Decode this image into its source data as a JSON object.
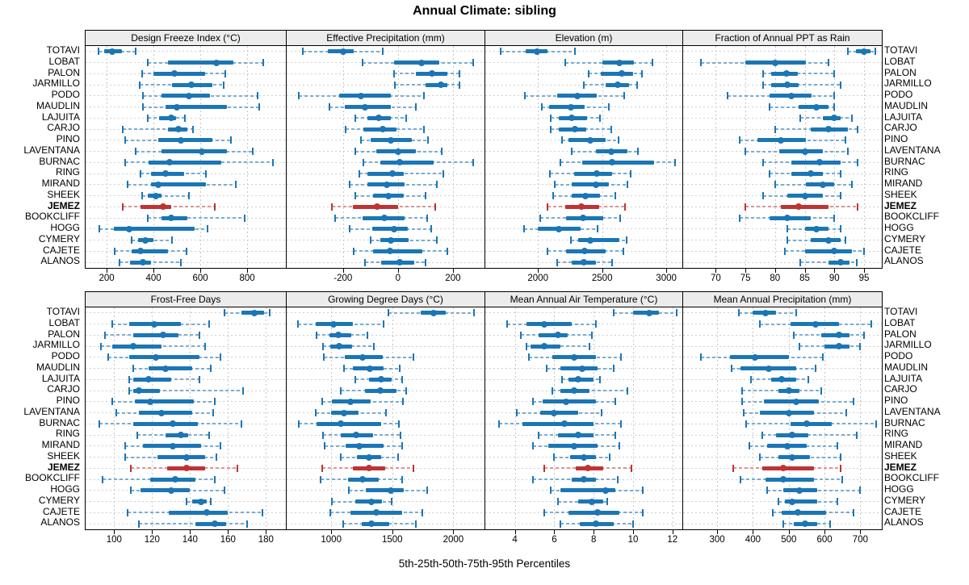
{
  "title": "Annual Climate: sibling",
  "caption": "5th-25th-50th-75th-95th Percentiles",
  "percentiles": [
    5,
    25,
    50,
    75,
    95
  ],
  "sites": [
    "TOTAVI",
    "LOBAT",
    "PALON",
    "JARMILLO",
    "PODO",
    "MAUDLIN",
    "LAJUITA",
    "CARJO",
    "PINO",
    "LAVENTANA",
    "BURNAC",
    "RING",
    "MIRAND",
    "SHEEK",
    "JEMEZ",
    "BOOKCLIFF",
    "HOGG",
    "CYMERY",
    "CAJETE",
    "ALANOS"
  ],
  "highlight_site": "JEMEZ",
  "colors": {
    "blue": "#1B76B5",
    "blue_light": "#7AADD3",
    "red": "#BE3434",
    "red_light": "#DC9595",
    "strip_bg": "#ECECEC",
    "border": "#000000",
    "grid": "#C8C8C8"
  },
  "chart_data": [
    {
      "type": "dotplot",
      "title": "Design Freeze Index (°C)",
      "xlim": [
        110,
        965
      ],
      "ticks": [
        200,
        400,
        600,
        800
      ],
      "values": [
        [
          165,
          190,
          225,
          265,
          325
        ],
        [
          375,
          460,
          670,
          740,
          870
        ],
        [
          350,
          400,
          490,
          620,
          705
        ],
        [
          340,
          480,
          560,
          650,
          700
        ],
        [
          355,
          435,
          550,
          640,
          845
        ],
        [
          355,
          450,
          500,
          715,
          850
        ],
        [
          375,
          425,
          475,
          495,
          535
        ],
        [
          270,
          460,
          505,
          545,
          570
        ],
        [
          280,
          420,
          515,
          650,
          730
        ],
        [
          325,
          435,
          605,
          715,
          825
        ],
        [
          280,
          380,
          470,
          690,
          910
        ],
        [
          345,
          390,
          450,
          530,
          625
        ],
        [
          290,
          390,
          420,
          625,
          750
        ],
        [
          350,
          375,
          410,
          435,
          550
        ],
        [
          270,
          345,
          440,
          475,
          660
        ],
        [
          375,
          435,
          475,
          545,
          790
        ],
        [
          170,
          230,
          295,
          575,
          630
        ],
        [
          305,
          335,
          365,
          400,
          480
        ],
        [
          235,
          305,
          345,
          460,
          540
        ],
        [
          255,
          300,
          355,
          390,
          515
        ]
      ]
    },
    {
      "type": "dotplot",
      "title": "Effective Precipitation (mm)",
      "xlim": [
        -405,
        315
      ],
      "ticks": [
        -200,
        0,
        200
      ],
      "values": [
        [
          -345,
          -255,
          -200,
          -160,
          -55
        ],
        [
          -130,
          -15,
          85,
          150,
          275
        ],
        [
          -15,
          65,
          125,
          180,
          225
        ],
        [
          -10,
          100,
          155,
          180,
          225
        ],
        [
          -360,
          -215,
          -135,
          -25,
          95
        ],
        [
          -250,
          -195,
          -120,
          -25,
          65
        ],
        [
          -155,
          -110,
          -70,
          -25,
          30
        ],
        [
          -190,
          -125,
          -55,
          -5,
          95
        ],
        [
          -135,
          -100,
          -25,
          50,
          110
        ],
        [
          -155,
          -80,
          0,
          65,
          160
        ],
        [
          -125,
          -65,
          5,
          130,
          275
        ],
        [
          -140,
          -110,
          -20,
          20,
          165
        ],
        [
          -175,
          -110,
          -40,
          25,
          140
        ],
        [
          -155,
          -90,
          -35,
          20,
          100
        ],
        [
          -240,
          -165,
          -75,
          0,
          135
        ],
        [
          -230,
          -130,
          -50,
          25,
          105
        ],
        [
          -175,
          -95,
          -15,
          35,
          120
        ],
        [
          -100,
          -65,
          -25,
          40,
          140
        ],
        [
          -160,
          -90,
          -30,
          90,
          180
        ],
        [
          -120,
          -60,
          5,
          60,
          100
        ]
      ]
    },
    {
      "type": "dotplot",
      "title": "Elevation (m)",
      "xlim": [
        1590,
        3125
      ],
      "ticks": [
        2000,
        2500,
        3000
      ],
      "values": [
        [
          1710,
          1905,
          1995,
          2075,
          2290
        ],
        [
          2215,
          2500,
          2635,
          2750,
          2895
        ],
        [
          2395,
          2490,
          2650,
          2740,
          2812
        ],
        [
          2360,
          2530,
          2620,
          2710,
          2775
        ],
        [
          1900,
          2150,
          2305,
          2460,
          2670
        ],
        [
          2030,
          2085,
          2255,
          2365,
          2550
        ],
        [
          2100,
          2165,
          2260,
          2385,
          2480
        ],
        [
          2100,
          2165,
          2285,
          2375,
          2570
        ],
        [
          2190,
          2240,
          2410,
          2530,
          2630
        ],
        [
          2260,
          2450,
          2570,
          2700,
          2780
        ],
        [
          2175,
          2345,
          2580,
          2905,
          3070
        ],
        [
          2095,
          2280,
          2460,
          2575,
          2720
        ],
        [
          2130,
          2260,
          2450,
          2550,
          2700
        ],
        [
          2120,
          2260,
          2370,
          2480,
          2605
        ],
        [
          2075,
          2210,
          2340,
          2480,
          2675
        ],
        [
          2020,
          2220,
          2350,
          2510,
          2640
        ],
        [
          1890,
          2000,
          2160,
          2335,
          2465
        ],
        [
          2255,
          2315,
          2405,
          2635,
          2690
        ],
        [
          2075,
          2220,
          2365,
          2530,
          2665
        ],
        [
          2150,
          2260,
          2360,
          2450,
          2575
        ]
      ]
    },
    {
      "type": "dotplot",
      "title": "Fraction of Annual PPT as Rain",
      "xlim": [
        64.5,
        98
      ],
      "ticks": [
        70,
        75,
        80,
        85,
        90,
        95
      ],
      "values": [
        [
          92.3,
          93.7,
          95,
          96.1,
          96.9
        ],
        [
          67.5,
          75,
          80,
          85.2,
          89
        ],
        [
          78,
          79.3,
          81.9,
          83.9,
          90
        ],
        [
          78,
          79.3,
          82,
          84,
          91
        ],
        [
          72,
          79,
          82.8,
          86.1,
          90
        ],
        [
          79,
          84,
          87,
          89,
          90
        ],
        [
          84.2,
          88,
          90,
          91,
          92.9
        ],
        [
          80,
          86,
          89,
          92.3,
          93.9
        ],
        [
          74,
          77,
          81,
          85.2,
          91.8
        ],
        [
          75,
          80.7,
          85,
          88,
          92.3
        ],
        [
          78,
          82.8,
          87.5,
          91,
          93.9
        ],
        [
          79,
          82.8,
          86,
          88,
          91
        ],
        [
          80,
          85.2,
          88,
          90,
          92.9
        ],
        [
          78,
          82,
          85,
          88,
          91
        ],
        [
          75,
          81,
          84,
          89,
          93.9
        ],
        [
          74,
          79,
          82,
          86,
          90
        ],
        [
          82,
          85,
          87,
          89,
          91
        ],
        [
          82,
          86,
          89,
          91,
          91.8
        ],
        [
          81.6,
          85,
          90,
          93,
          95
        ],
        [
          84.3,
          89,
          91,
          92.6,
          93.8
        ]
      ]
    },
    {
      "type": "dotplot",
      "title": "Frost-Free Days",
      "xlim": [
        85,
        190.5
      ],
      "ticks": [
        100,
        120,
        140,
        160,
        180
      ],
      "values": [
        [
          158,
          167,
          174,
          179,
          182
        ],
        [
          99,
          108,
          121,
          135,
          150
        ],
        [
          95,
          110,
          126,
          134,
          145
        ],
        [
          93,
          99,
          110,
          125,
          148
        ],
        [
          97,
          108,
          122,
          145,
          156
        ],
        [
          110,
          118,
          127,
          141,
          151
        ],
        [
          108,
          110,
          118,
          130,
          145
        ],
        [
          108,
          110,
          113,
          124,
          168
        ],
        [
          99,
          111,
          119,
          142,
          153
        ],
        [
          101,
          113,
          125,
          141,
          152
        ],
        [
          92,
          110,
          131,
          144,
          167
        ],
        [
          112,
          127,
          135,
          139,
          150
        ],
        [
          106,
          115,
          131,
          146,
          156
        ],
        [
          106,
          123,
          138,
          148,
          154
        ],
        [
          109,
          128,
          138,
          148,
          165
        ],
        [
          94,
          119,
          132,
          143,
          153
        ],
        [
          109,
          114,
          130,
          140,
          158
        ],
        [
          138,
          141,
          146,
          149,
          151
        ],
        [
          107,
          129,
          149,
          160,
          178
        ],
        [
          113,
          143,
          153,
          159,
          170
        ]
      ]
    },
    {
      "type": "dotplot",
      "title": "Growing Degree Days (°C)",
      "xlim": [
        635,
        2255
      ],
      "ticks": [
        1000,
        1500,
        2000
      ],
      "values": [
        [
          1470,
          1735,
          1840,
          1935,
          2170
        ],
        [
          730,
          875,
          1015,
          1175,
          1425
        ],
        [
          880,
          985,
          1060,
          1165,
          1295
        ],
        [
          935,
          995,
          1065,
          1170,
          1350
        ],
        [
          940,
          1110,
          1255,
          1425,
          1670
        ],
        [
          1105,
          1180,
          1315,
          1430,
          1560
        ],
        [
          1200,
          1310,
          1410,
          1495,
          1580
        ],
        [
          1080,
          1275,
          1400,
          1535,
          1615
        ],
        [
          925,
          1005,
          1155,
          1325,
          1585
        ],
        [
          870,
          1000,
          1105,
          1225,
          1450
        ],
        [
          735,
          880,
          1080,
          1410,
          1555
        ],
        [
          935,
          1075,
          1205,
          1340,
          1565
        ],
        [
          945,
          1115,
          1230,
          1430,
          1580
        ],
        [
          1075,
          1210,
          1310,
          1405,
          1545
        ],
        [
          925,
          1175,
          1310,
          1445,
          1675
        ],
        [
          910,
          1140,
          1255,
          1390,
          1580
        ],
        [
          1145,
          1280,
          1490,
          1595,
          1785
        ],
        [
          1005,
          1200,
          1330,
          1415,
          1495
        ],
        [
          995,
          1155,
          1370,
          1580,
          1745
        ],
        [
          1100,
          1250,
          1330,
          1475,
          1690
        ]
      ]
    },
    {
      "type": "dotplot",
      "title": "Mean Annual Air Temperature (°C)",
      "xlim": [
        2.5,
        12.5
      ],
      "ticks": [
        4,
        6,
        8,
        10,
        12
      ],
      "values": [
        [
          9.0,
          10.0,
          10.8,
          11.3,
          12.2
        ],
        [
          3.6,
          4.6,
          5.5,
          6.9,
          8.1
        ],
        [
          4.3,
          5.2,
          6.2,
          6.7,
          7.9
        ],
        [
          4.6,
          4.8,
          5.5,
          6.3,
          7.8
        ],
        [
          4.7,
          5.9,
          7.0,
          8.1,
          9.4
        ],
        [
          5.6,
          6.3,
          7.4,
          8.2,
          9.0
        ],
        [
          6.4,
          6.7,
          7.2,
          8.0,
          8.3
        ],
        [
          5.9,
          6.3,
          7.0,
          7.8,
          9.7
        ],
        [
          4.9,
          5.4,
          6.6,
          8.1,
          9.1
        ],
        [
          4.1,
          5.3,
          6.0,
          7.2,
          8.4
        ],
        [
          3.2,
          4.4,
          6.5,
          8.0,
          9.4
        ],
        [
          5.2,
          6.2,
          7.2,
          8.0,
          9.1
        ],
        [
          4.9,
          5.7,
          7.0,
          8.2,
          9.3
        ],
        [
          6.0,
          6.8,
          7.5,
          8.1,
          8.8
        ],
        [
          5.5,
          7.1,
          7.7,
          8.5,
          9.9
        ],
        [
          4.9,
          6.9,
          7.5,
          8.1,
          9.2
        ],
        [
          5.8,
          6.3,
          8.6,
          9.1,
          10.5
        ],
        [
          6.2,
          7.2,
          7.9,
          8.5,
          8.7
        ],
        [
          5.5,
          6.7,
          8.2,
          9.3,
          10.5
        ],
        [
          6.3,
          7.3,
          8.1,
          9.0,
          10.0
        ]
      ]
    },
    {
      "type": "dotplot",
      "title": "Mean Annual Precipitation (mm)",
      "xlim": [
        205,
        760
      ],
      "ticks": [
        300,
        400,
        500,
        600,
        700
      ],
      "values": [
        [
          360,
          400,
          435,
          465,
          520
        ],
        [
          420,
          505,
          575,
          640,
          730
        ],
        [
          515,
          590,
          640,
          670,
          710
        ],
        [
          530,
          600,
          640,
          670,
          700
        ],
        [
          255,
          335,
          405,
          500,
          595
        ],
        [
          340,
          365,
          445,
          520,
          575
        ],
        [
          395,
          450,
          480,
          520,
          555
        ],
        [
          370,
          470,
          500,
          530,
          590
        ],
        [
          370,
          430,
          520,
          585,
          680
        ],
        [
          375,
          420,
          500,
          570,
          660
        ],
        [
          380,
          505,
          550,
          620,
          745
        ],
        [
          425,
          465,
          510,
          555,
          690
        ],
        [
          390,
          440,
          495,
          550,
          635
        ],
        [
          420,
          470,
          510,
          560,
          645
        ],
        [
          345,
          425,
          485,
          570,
          645
        ],
        [
          365,
          435,
          485,
          570,
          650
        ],
        [
          440,
          485,
          530,
          580,
          700
        ],
        [
          470,
          490,
          510,
          580,
          635
        ],
        [
          455,
          480,
          525,
          605,
          680
        ],
        [
          485,
          515,
          545,
          580,
          615
        ]
      ]
    }
  ]
}
